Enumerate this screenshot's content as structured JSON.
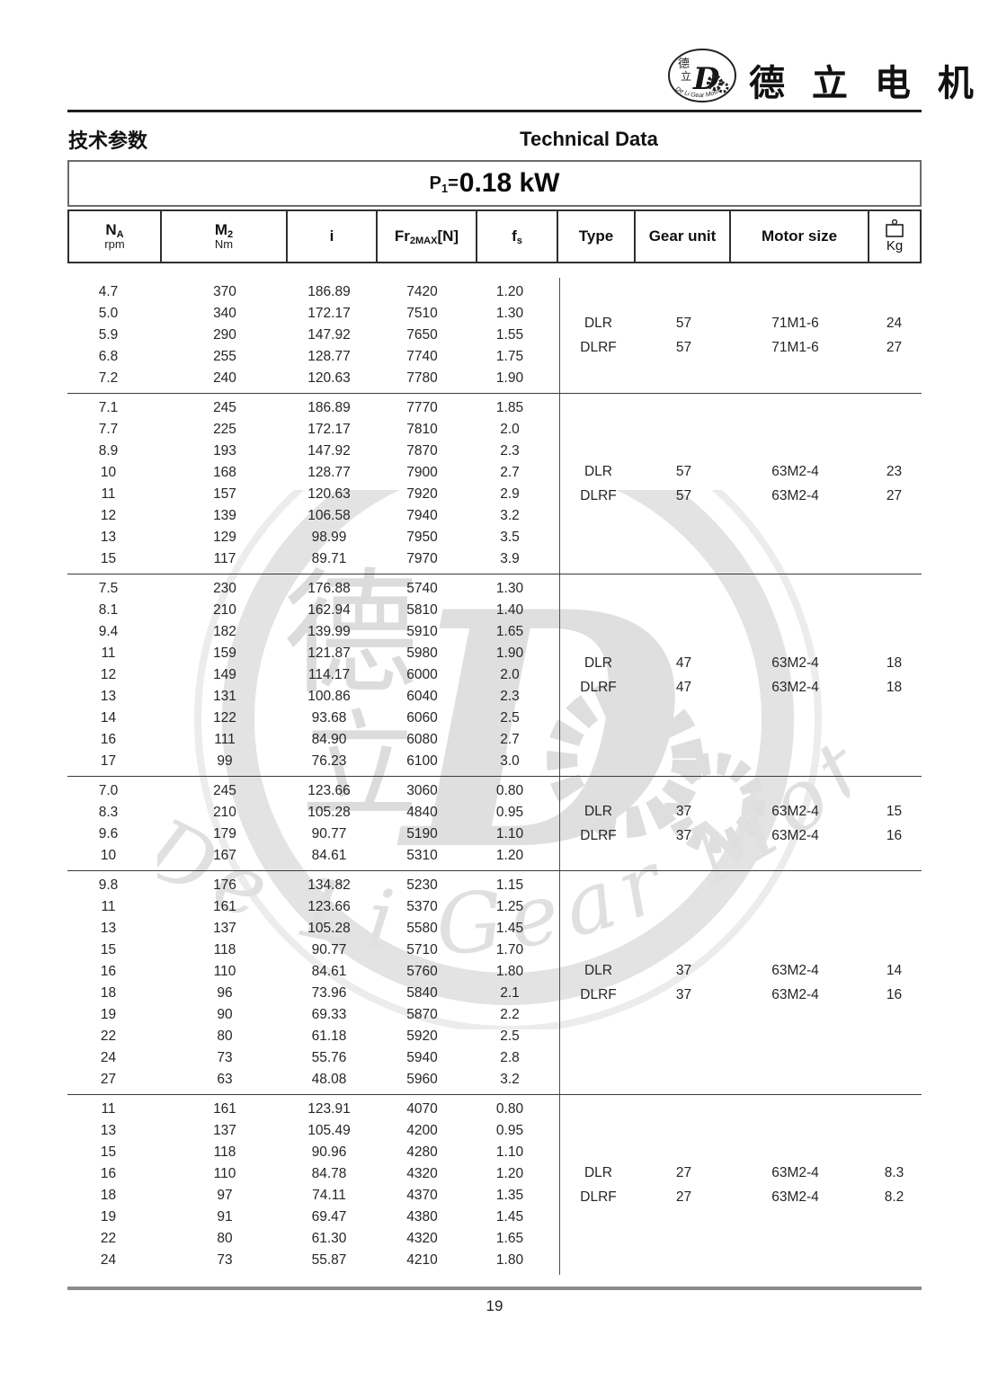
{
  "header": {
    "brand": "德 立 电 机",
    "section_cn": "技术参数",
    "section_en": "Technical Data",
    "logo": {
      "cn_top": "德",
      "cn_bottom": "立",
      "d": "D",
      "arc": "De Li Gear Motor"
    }
  },
  "power": {
    "p": "P",
    "p_sub": "1",
    "eq": "=",
    "value": "0.18 kW"
  },
  "table": {
    "headers": [
      {
        "main": "N",
        "sub": "A",
        "unit": "rpm"
      },
      {
        "main": "M",
        "sub": "2",
        "unit": "Nm"
      },
      {
        "main": "i"
      },
      {
        "main": "Fr",
        "sub": "2MAX",
        "tail": "[N]"
      },
      {
        "main": "f",
        "sub": "s"
      },
      {
        "main": "Type"
      },
      {
        "main": "Gear unit"
      },
      {
        "main": "Motor size"
      },
      {
        "main": "Kg",
        "icon": "weight-icon"
      }
    ],
    "blocks": [
      {
        "rows": [
          [
            "4.7",
            "370",
            "186.89",
            "7420",
            "1.20"
          ],
          [
            "5.0",
            "340",
            "172.17",
            "7510",
            "1.30"
          ],
          [
            "5.9",
            "290",
            "147.92",
            "7650",
            "1.55"
          ],
          [
            "6.8",
            "255",
            "128.77",
            "7740",
            "1.75"
          ],
          [
            "7.2",
            "240",
            "120.63",
            "7780",
            "1.90"
          ]
        ],
        "groups": [
          [
            "DLR",
            "57",
            "71M1-6",
            "24"
          ],
          [
            "DLRF",
            "57",
            "71M1-6",
            "27"
          ]
        ]
      },
      {
        "rows": [
          [
            "7.1",
            "245",
            "186.89",
            "7770",
            "1.85"
          ],
          [
            "7.7",
            "225",
            "172.17",
            "7810",
            "2.0"
          ],
          [
            "8.9",
            "193",
            "147.92",
            "7870",
            "2.3"
          ],
          [
            "10",
            "168",
            "128.77",
            "7900",
            "2.7"
          ],
          [
            "11",
            "157",
            "120.63",
            "7920",
            "2.9"
          ],
          [
            "12",
            "139",
            "106.58",
            "7940",
            "3.2"
          ],
          [
            "13",
            "129",
            "98.99",
            "7950",
            "3.5"
          ],
          [
            "15",
            "117",
            "89.71",
            "7970",
            "3.9"
          ]
        ],
        "groups": [
          [
            "DLR",
            "57",
            "63M2-4",
            "23"
          ],
          [
            "DLRF",
            "57",
            "63M2-4",
            "27"
          ]
        ]
      },
      {
        "rows": [
          [
            "7.5",
            "230",
            "176.88",
            "5740",
            "1.30"
          ],
          [
            "8.1",
            "210",
            "162.94",
            "5810",
            "1.40"
          ],
          [
            "9.4",
            "182",
            "139.99",
            "5910",
            "1.65"
          ],
          [
            "11",
            "159",
            "121.87",
            "5980",
            "1.90"
          ],
          [
            "12",
            "149",
            "114.17",
            "6000",
            "2.0"
          ],
          [
            "13",
            "131",
            "100.86",
            "6040",
            "2.3"
          ],
          [
            "14",
            "122",
            "93.68",
            "6060",
            "2.5"
          ],
          [
            "16",
            "111",
            "84.90",
            "6080",
            "2.7"
          ],
          [
            "17",
            "99",
            "76.23",
            "6100",
            "3.0"
          ]
        ],
        "groups": [
          [
            "DLR",
            "47",
            "63M2-4",
            "18"
          ],
          [
            "DLRF",
            "47",
            "63M2-4",
            "18"
          ]
        ]
      },
      {
        "rows": [
          [
            "7.0",
            "245",
            "123.66",
            "3060",
            "0.80"
          ],
          [
            "8.3",
            "210",
            "105.28",
            "4840",
            "0.95"
          ],
          [
            "9.6",
            "179",
            "90.77",
            "5190",
            "1.10"
          ],
          [
            "10",
            "167",
            "84.61",
            "5310",
            "1.20"
          ]
        ],
        "groups": [
          [
            "DLR",
            "37",
            "63M2-4",
            "15"
          ],
          [
            "DLRF",
            "37",
            "63M2-4",
            "16"
          ]
        ]
      },
      {
        "rows": [
          [
            "9.8",
            "176",
            "134.82",
            "5230",
            "1.15"
          ],
          [
            "11",
            "161",
            "123.66",
            "5370",
            "1.25"
          ],
          [
            "13",
            "137",
            "105.28",
            "5580",
            "1.45"
          ],
          [
            "15",
            "118",
            "90.77",
            "5710",
            "1.70"
          ],
          [
            "16",
            "110",
            "84.61",
            "5760",
            "1.80"
          ],
          [
            "18",
            "96",
            "73.96",
            "5840",
            "2.1"
          ],
          [
            "19",
            "90",
            "69.33",
            "5870",
            "2.2"
          ],
          [
            "22",
            "80",
            "61.18",
            "5920",
            "2.5"
          ],
          [
            "24",
            "73",
            "55.76",
            "5940",
            "2.8"
          ],
          [
            "27",
            "63",
            "48.08",
            "5960",
            "3.2"
          ]
        ],
        "groups": [
          [
            "DLR",
            "37",
            "63M2-4",
            "14"
          ],
          [
            "DLRF",
            "37",
            "63M2-4",
            "16"
          ]
        ]
      },
      {
        "rows": [
          [
            "11",
            "161",
            "123.91",
            "4070",
            "0.80"
          ],
          [
            "13",
            "137",
            "105.49",
            "4200",
            "0.95"
          ],
          [
            "15",
            "118",
            "90.96",
            "4280",
            "1.10"
          ],
          [
            "16",
            "110",
            "84.78",
            "4320",
            "1.20"
          ],
          [
            "18",
            "97",
            "74.11",
            "4370",
            "1.35"
          ],
          [
            "19",
            "91",
            "69.47",
            "4380",
            "1.45"
          ],
          [
            "22",
            "80",
            "61.30",
            "4320",
            "1.65"
          ],
          [
            "24",
            "73",
            "55.87",
            "4210",
            "1.80"
          ]
        ],
        "groups": [
          [
            "DLR",
            "27",
            "63M2-4",
            "8.3"
          ],
          [
            "DLRF",
            "27",
            "63M2-4",
            "8.2"
          ]
        ]
      }
    ]
  },
  "watermark": {
    "d": "D",
    "cn_de": "德",
    "cn_li": "立",
    "script": "De Li Gear Motor"
  },
  "footer": {
    "page_number": "19"
  },
  "colors": {
    "text": "#1f1f1f",
    "rule_dark": "#1e1e1e",
    "rule_gray": "#8c8c8c",
    "watermark": "#d9d9d9"
  }
}
